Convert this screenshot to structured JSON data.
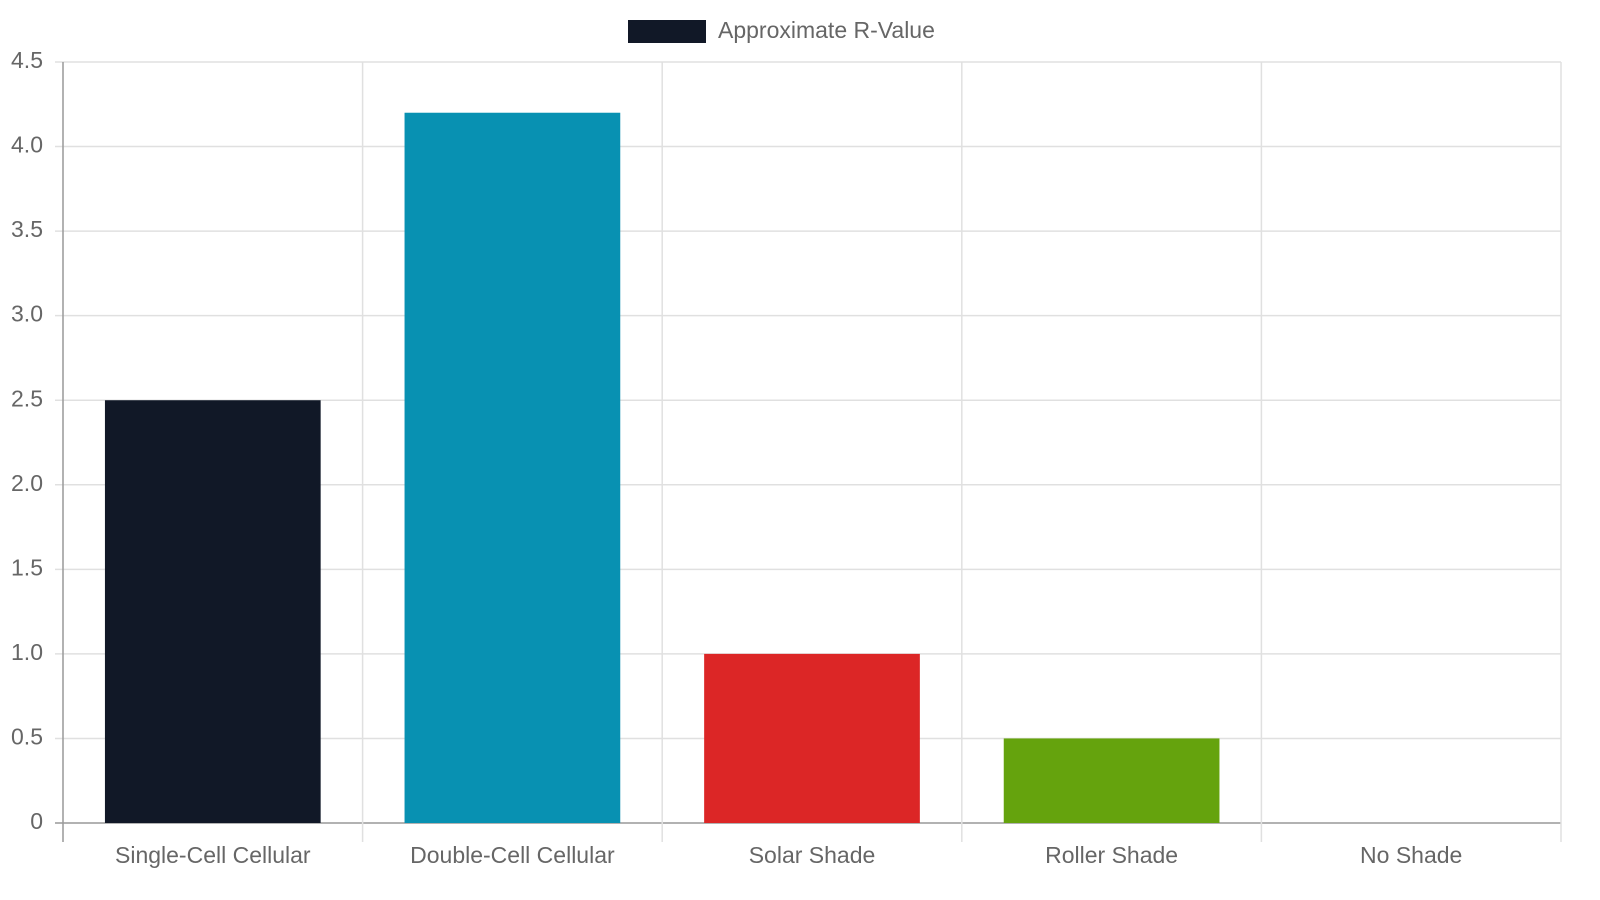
{
  "chart_data": {
    "type": "bar",
    "categories": [
      "Single-Cell Cellular",
      "Double-Cell Cellular",
      "Solar Shade",
      "Roller Shade",
      "No Shade"
    ],
    "series": [
      {
        "name": "Approximate R-Value",
        "colors": [
          "#111827",
          "#0891b2",
          "#dc2626",
          "#65a30d",
          "#7c3aed"
        ],
        "values": [
          2.5,
          4.2,
          1.0,
          0.5,
          0
        ]
      }
    ],
    "ylim": [
      0,
      4.5
    ],
    "yticks": [
      0,
      0.5,
      {
        "value": 1,
        "label": "1.0"
      },
      1.5,
      {
        "value": 2,
        "label": "2.0"
      },
      2.5,
      {
        "value": 3,
        "label": "3.0"
      },
      3.5,
      {
        "value": 4,
        "label": "4.0"
      },
      4.5
    ],
    "grid": true
  }
}
